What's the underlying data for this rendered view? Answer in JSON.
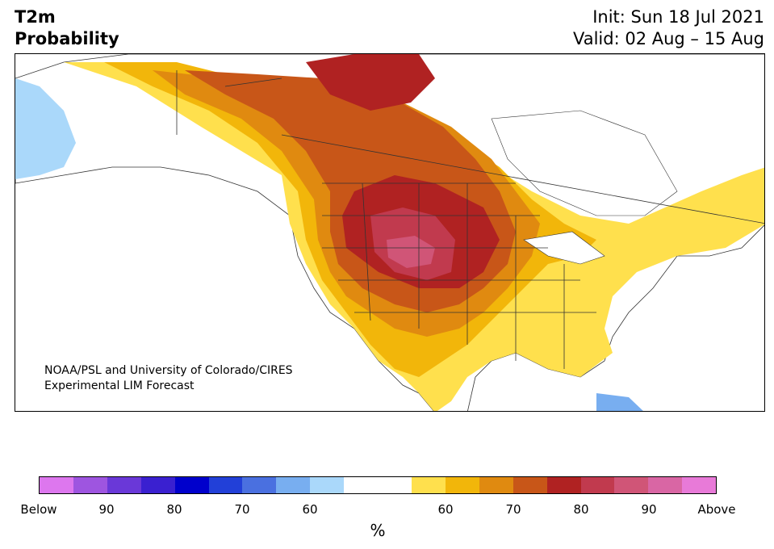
{
  "header": {
    "title_line1": "T2m",
    "title_line2": "Probability",
    "init": "Init: Sun 18 Jul 2021",
    "valid": "Valid: 02 Aug – 15 Aug"
  },
  "map": {
    "credit_line1": "NOAA/PSL and University of Colorado/CIRES",
    "credit_line2": "Experimental LIM Forecast",
    "colors": {
      "ocean": "#ffffff",
      "land_neutral": "#ffffff",
      "above_55_60": "#ffe04d",
      "above_60_65": "#f2b60a",
      "above_65_70": "#e08a10",
      "above_70_75": "#c85618",
      "above_75_80": "#b02222",
      "above_80_85": "#c13a4e",
      "above_85_90": "#d05577",
      "below_60_65": "#aad8fa",
      "below_65_70": "#78aef0",
      "borders": "#333333"
    }
  },
  "colorbar": {
    "colors": [
      "#dd77ee",
      "#9e55e0",
      "#6a38d8",
      "#3a20d0",
      "#0000cc",
      "#2240d8",
      "#4a70e0",
      "#78aef0",
      "#aad8fa",
      "#ffffff",
      "#ffffff",
      "#ffe04d",
      "#f2b60a",
      "#e08a10",
      "#c85618",
      "#b02222",
      "#c13a4e",
      "#d05577",
      "#d966a4",
      "#e87ad8"
    ],
    "tick_labels": [
      "Below",
      "90",
      "80",
      "70",
      "60",
      "",
      "60",
      "70",
      "80",
      "90",
      "Above"
    ],
    "unit_label": "%"
  }
}
